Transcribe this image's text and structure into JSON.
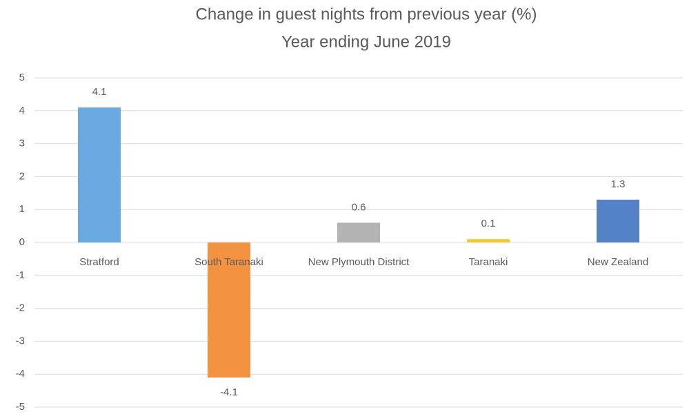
{
  "chart_data": {
    "type": "bar",
    "title": [
      "Change in guest nights from previous year (%)",
      "Year ending June 2019"
    ],
    "categories": [
      "Stratford",
      "South Taranaki",
      "New Plymouth District",
      "Taranaki",
      "New Zealand"
    ],
    "values": [
      4.1,
      -4.1,
      0.6,
      0.1,
      1.3
    ],
    "colors": [
      "#6aaae0",
      "#f39241",
      "#b3b3b3",
      "#f7c829",
      "#5383c6"
    ],
    "ylim": [
      -5,
      5
    ],
    "yticks": [
      -5,
      -4,
      -3,
      -2,
      -1,
      0,
      1,
      2,
      3,
      4,
      5
    ],
    "grid": true
  }
}
